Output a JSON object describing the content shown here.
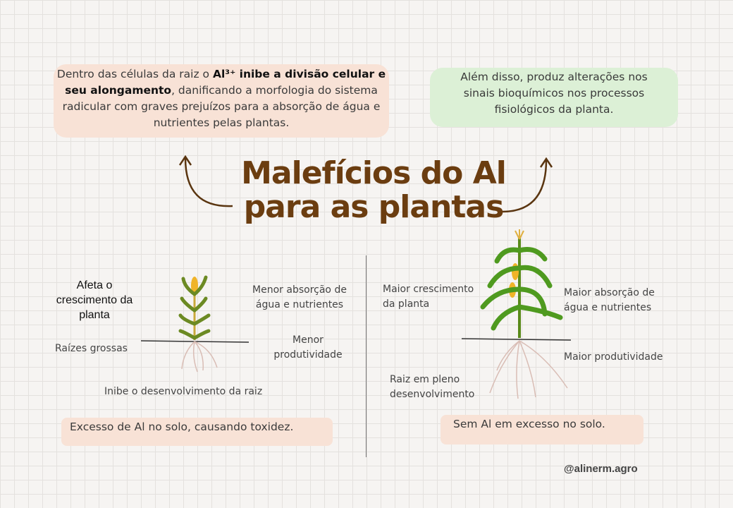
{
  "title": {
    "line1": "Malefícios do Al",
    "line2": "para as plantas"
  },
  "top_left_box": {
    "part1": "Dentro das células da raiz o ",
    "bold": "Al³⁺ inibe a divisão celular e seu alongamento",
    "part2": ", danificando a morfologia do sistema radicular com graves prejuízos para a absorção de água e nutrientes pelas plantas."
  },
  "top_right_box": {
    "text": "Além disso, produz alterações nos sinais bioquímicos nos processos fisiológicos da planta."
  },
  "left_panel": {
    "growth": "Afeta o crescimento da planta",
    "absorption": "Menor absorção de água e nutrientes",
    "roots": "Raízes grossas",
    "productivity": "Menor produtividade",
    "root_dev": "Inibe o desenvolvimento da raiz",
    "caption": "Excesso de Al no solo, causando toxidez."
  },
  "right_panel": {
    "growth": "Maior crescimento da planta",
    "absorption": "Maior absorção de água e nutrientes",
    "productivity": "Maior produtividade",
    "root_dev": "Raiz em pleno desenvolvimento",
    "caption": "Sem Al em excesso no solo."
  },
  "handle": "@alinerm.agro",
  "colors": {
    "title": "#6b3d10",
    "peach": "#f8e2d6",
    "green": "#dcf0d6",
    "arrow": "#5a3510"
  }
}
